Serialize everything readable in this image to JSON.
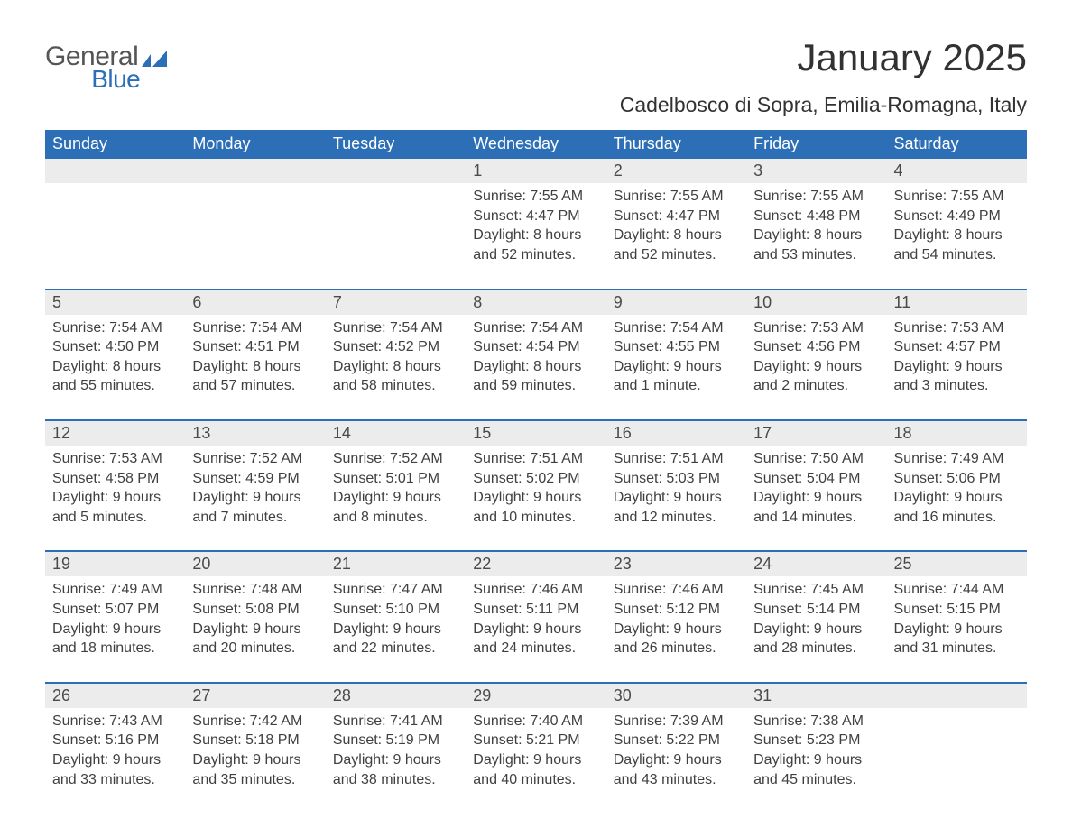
{
  "logo": {
    "text1": "General",
    "text2": "Blue"
  },
  "title": "January 2025",
  "subtitle": "Cadelbosco di Sopra, Emilia-Romagna, Italy",
  "colors": {
    "header_bg": "#2d6fb6",
    "header_text": "#ffffff",
    "daynum_bg": "#ececec",
    "daynum_text": "#4a4a4a",
    "body_text": "#404040",
    "page_bg": "#ffffff",
    "rule": "#2d6fb6",
    "logo_gray": "#555555",
    "logo_blue": "#2d6fb6"
  },
  "typography": {
    "title_fontsize": 42,
    "subtitle_fontsize": 23,
    "dow_fontsize": 18,
    "daynum_fontsize": 18,
    "body_fontsize": 16,
    "font_family": "Arial"
  },
  "daysOfWeek": [
    "Sunday",
    "Monday",
    "Tuesday",
    "Wednesday",
    "Thursday",
    "Friday",
    "Saturday"
  ],
  "weeks": [
    [
      null,
      null,
      null,
      {
        "n": "1",
        "sunrise": "7:55 AM",
        "sunset": "4:47 PM",
        "daylight": "8 hours and 52 minutes."
      },
      {
        "n": "2",
        "sunrise": "7:55 AM",
        "sunset": "4:47 PM",
        "daylight": "8 hours and 52 minutes."
      },
      {
        "n": "3",
        "sunrise": "7:55 AM",
        "sunset": "4:48 PM",
        "daylight": "8 hours and 53 minutes."
      },
      {
        "n": "4",
        "sunrise": "7:55 AM",
        "sunset": "4:49 PM",
        "daylight": "8 hours and 54 minutes."
      }
    ],
    [
      {
        "n": "5",
        "sunrise": "7:54 AM",
        "sunset": "4:50 PM",
        "daylight": "8 hours and 55 minutes."
      },
      {
        "n": "6",
        "sunrise": "7:54 AM",
        "sunset": "4:51 PM",
        "daylight": "8 hours and 57 minutes."
      },
      {
        "n": "7",
        "sunrise": "7:54 AM",
        "sunset": "4:52 PM",
        "daylight": "8 hours and 58 minutes."
      },
      {
        "n": "8",
        "sunrise": "7:54 AM",
        "sunset": "4:54 PM",
        "daylight": "8 hours and 59 minutes."
      },
      {
        "n": "9",
        "sunrise": "7:54 AM",
        "sunset": "4:55 PM",
        "daylight": "9 hours and 1 minute."
      },
      {
        "n": "10",
        "sunrise": "7:53 AM",
        "sunset": "4:56 PM",
        "daylight": "9 hours and 2 minutes."
      },
      {
        "n": "11",
        "sunrise": "7:53 AM",
        "sunset": "4:57 PM",
        "daylight": "9 hours and 3 minutes."
      }
    ],
    [
      {
        "n": "12",
        "sunrise": "7:53 AM",
        "sunset": "4:58 PM",
        "daylight": "9 hours and 5 minutes."
      },
      {
        "n": "13",
        "sunrise": "7:52 AM",
        "sunset": "4:59 PM",
        "daylight": "9 hours and 7 minutes."
      },
      {
        "n": "14",
        "sunrise": "7:52 AM",
        "sunset": "5:01 PM",
        "daylight": "9 hours and 8 minutes."
      },
      {
        "n": "15",
        "sunrise": "7:51 AM",
        "sunset": "5:02 PM",
        "daylight": "9 hours and 10 minutes."
      },
      {
        "n": "16",
        "sunrise": "7:51 AM",
        "sunset": "5:03 PM",
        "daylight": "9 hours and 12 minutes."
      },
      {
        "n": "17",
        "sunrise": "7:50 AM",
        "sunset": "5:04 PM",
        "daylight": "9 hours and 14 minutes."
      },
      {
        "n": "18",
        "sunrise": "7:49 AM",
        "sunset": "5:06 PM",
        "daylight": "9 hours and 16 minutes."
      }
    ],
    [
      {
        "n": "19",
        "sunrise": "7:49 AM",
        "sunset": "5:07 PM",
        "daylight": "9 hours and 18 minutes."
      },
      {
        "n": "20",
        "sunrise": "7:48 AM",
        "sunset": "5:08 PM",
        "daylight": "9 hours and 20 minutes."
      },
      {
        "n": "21",
        "sunrise": "7:47 AM",
        "sunset": "5:10 PM",
        "daylight": "9 hours and 22 minutes."
      },
      {
        "n": "22",
        "sunrise": "7:46 AM",
        "sunset": "5:11 PM",
        "daylight": "9 hours and 24 minutes."
      },
      {
        "n": "23",
        "sunrise": "7:46 AM",
        "sunset": "5:12 PM",
        "daylight": "9 hours and 26 minutes."
      },
      {
        "n": "24",
        "sunrise": "7:45 AM",
        "sunset": "5:14 PM",
        "daylight": "9 hours and 28 minutes."
      },
      {
        "n": "25",
        "sunrise": "7:44 AM",
        "sunset": "5:15 PM",
        "daylight": "9 hours and 31 minutes."
      }
    ],
    [
      {
        "n": "26",
        "sunrise": "7:43 AM",
        "sunset": "5:16 PM",
        "daylight": "9 hours and 33 minutes."
      },
      {
        "n": "27",
        "sunrise": "7:42 AM",
        "sunset": "5:18 PM",
        "daylight": "9 hours and 35 minutes."
      },
      {
        "n": "28",
        "sunrise": "7:41 AM",
        "sunset": "5:19 PM",
        "daylight": "9 hours and 38 minutes."
      },
      {
        "n": "29",
        "sunrise": "7:40 AM",
        "sunset": "5:21 PM",
        "daylight": "9 hours and 40 minutes."
      },
      {
        "n": "30",
        "sunrise": "7:39 AM",
        "sunset": "5:22 PM",
        "daylight": "9 hours and 43 minutes."
      },
      {
        "n": "31",
        "sunrise": "7:38 AM",
        "sunset": "5:23 PM",
        "daylight": "9 hours and 45 minutes."
      },
      null
    ]
  ],
  "labels": {
    "sunrise": "Sunrise: ",
    "sunset": "Sunset: ",
    "daylight": "Daylight: "
  }
}
